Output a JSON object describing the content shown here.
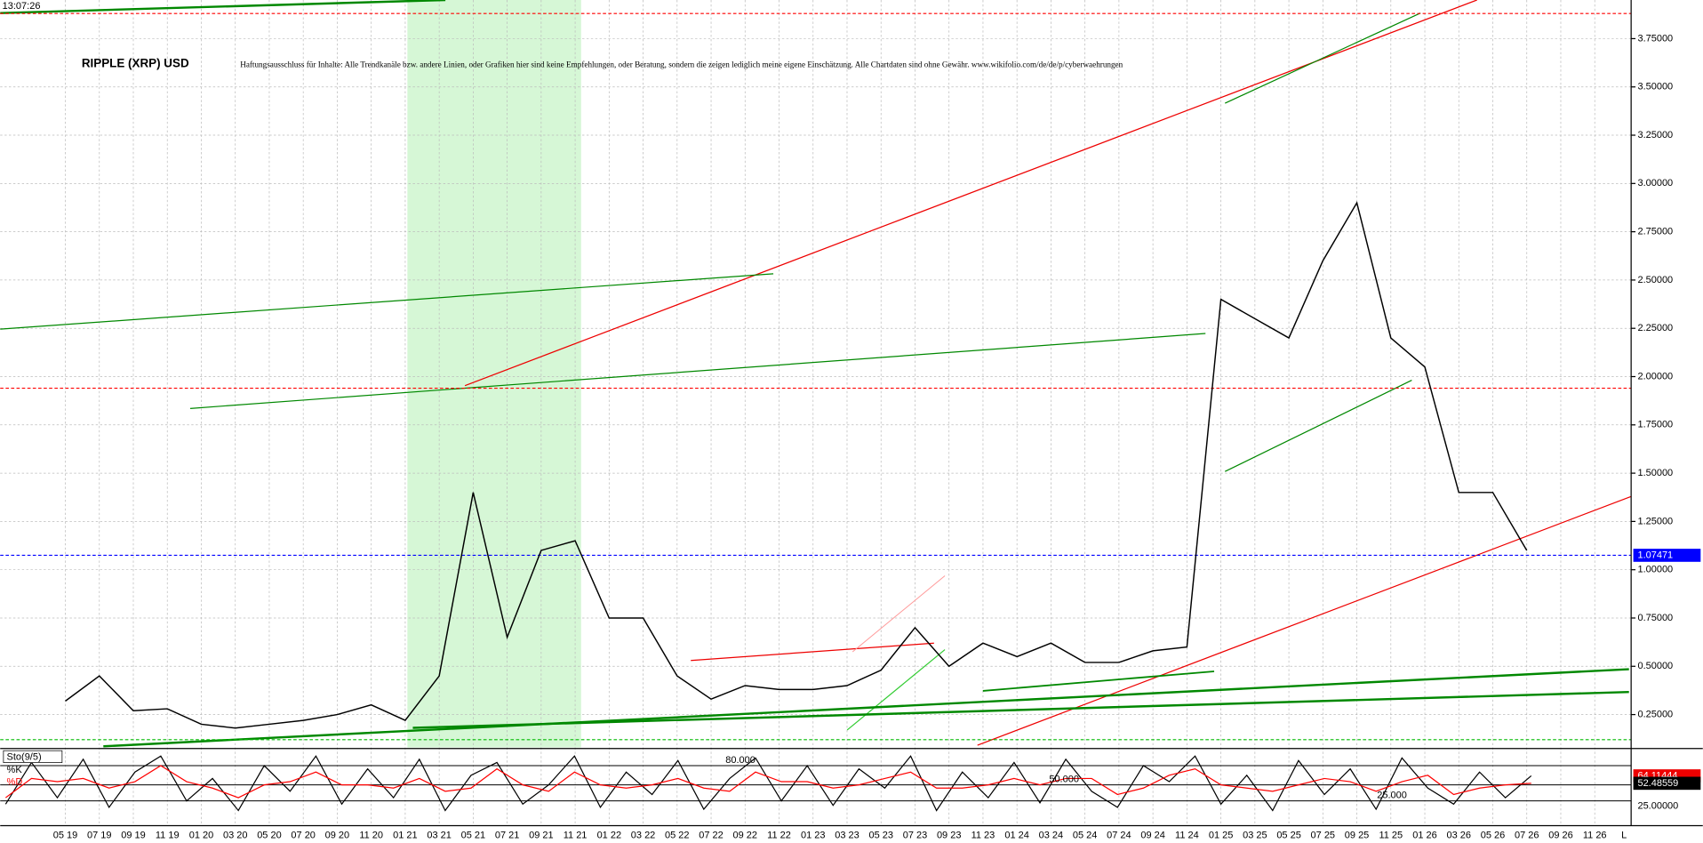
{
  "chart_data": {
    "type": "line",
    "title": "RIPPLE (XRP) USD",
    "subtitle": "Haftungsausschluss für Inhalte: Alle Trendkanäle bzw. andere Linien, oder Grafiken hier sind keine Empfehlungen, oder Beratung, sondern die zeigen lediglich meine eigene Einschätzung. Alle Chartdaten sind ohne Gewähr. www.wikifolio.com/de/de/p/cyberwaehrungen",
    "timestamp": "13:07:26",
    "categories": [
      "05 19",
      "07 19",
      "09 19",
      "11 19",
      "01 20",
      "03 20",
      "05 20",
      "07 20",
      "09 20",
      "11 20",
      "01 21",
      "03 21",
      "05 21",
      "07 21",
      "09 21",
      "11 21",
      "01 22",
      "03 22",
      "05 22",
      "07 22",
      "09 22",
      "11 22",
      "01 23",
      "03 23",
      "05 23",
      "07 23",
      "09 23",
      "11 23",
      "01 24",
      "03 24",
      "05 24",
      "07 24",
      "09 24",
      "11 24",
      "01 25",
      "03 25",
      "05 25",
      "07 25",
      "09 25",
      "11 25",
      "01 26",
      "03 26",
      "05 26",
      "07 26",
      "09 26",
      "11 26"
    ],
    "series": [
      {
        "name": "XRP",
        "color": "#000000",
        "values": [
          0.32,
          0.45,
          0.27,
          0.28,
          0.2,
          0.18,
          0.2,
          0.22,
          0.25,
          0.3,
          0.22,
          0.45,
          1.4,
          0.65,
          1.1,
          1.15,
          0.75,
          0.75,
          0.45,
          0.33,
          0.4,
          0.38,
          0.38,
          0.4,
          0.48,
          0.7,
          0.5,
          0.62,
          0.55,
          0.62,
          0.52,
          0.52,
          0.58,
          0.6,
          2.4,
          2.3,
          2.2,
          2.6,
          2.9,
          2.2,
          2.05,
          1.4,
          1.4,
          1.1,
          null,
          null
        ]
      }
    ],
    "ylim": [
      0.08,
      3.95
    ],
    "yticks": [
      {
        "value": 0.25,
        "label": "0.25000"
      },
      {
        "value": 0.5,
        "label": "0.50000"
      },
      {
        "value": 0.75,
        "label": "0.75000"
      },
      {
        "value": 1,
        "label": "1.00000"
      },
      {
        "value": 1.25,
        "label": "1.25000"
      },
      {
        "value": 1.5,
        "label": "1.50000"
      },
      {
        "value": 1.75,
        "label": "1.75000"
      },
      {
        "value": 2,
        "label": "2.00000"
      },
      {
        "value": 2.25,
        "label": "2.25000"
      },
      {
        "value": 2.5,
        "label": "2.50000"
      },
      {
        "value": 2.75,
        "label": "2.75000"
      },
      {
        "value": 3,
        "label": "3.00000"
      },
      {
        "value": 3.25,
        "label": "3.25000"
      },
      {
        "value": 3.5,
        "label": "3.50000"
      },
      {
        "value": 3.75,
        "label": "3.75000"
      }
    ],
    "hlines": [
      {
        "value": 1.07471,
        "color": "#0000ff"
      },
      {
        "value": 1.94,
        "color": "#ff0000"
      },
      {
        "value": 3.88,
        "color": "#ff0000"
      },
      {
        "value": 0.12,
        "color": "#00bb00"
      }
    ],
    "grid": true,
    "indicator": {
      "name": "Sto(9/5)",
      "ylim": [
        0,
        100
      ],
      "levels": [
        {
          "value": 80,
          "label": "80.000"
        },
        {
          "value": 50,
          "label": "50.000"
        },
        {
          "value": 25,
          "label": "25.000"
        }
      ],
      "series": [
        {
          "name": "%K",
          "color": "#000000",
          "values": [
            20,
            85,
            30,
            90,
            15,
            70,
            95,
            25,
            60,
            10,
            80,
            40,
            95,
            20,
            75,
            30,
            90,
            10,
            65,
            85,
            20,
            50,
            95,
            15,
            70,
            35,
            88,
            12,
            60,
            92,
            25,
            80,
            18,
            75,
            45,
            95,
            10,
            70,
            30,
            85,
            22,
            90,
            40,
            15,
            80,
            55,
            95,
            20,
            65,
            10,
            88,
            35,
            75,
            12,
            92,
            45,
            20,
            70,
            30,
            64.11444
          ],
          "value_label": "64.11444"
        },
        {
          "name": "%D",
          "color": "#ff0000",
          "values": [
            30,
            60,
            55,
            60,
            45,
            55,
            80,
            55,
            45,
            30,
            50,
            55,
            70,
            50,
            50,
            45,
            60,
            40,
            45,
            75,
            50,
            40,
            70,
            50,
            45,
            50,
            60,
            45,
            40,
            70,
            55,
            55,
            45,
            50,
            60,
            70,
            45,
            45,
            50,
            60,
            50,
            60,
            60,
            35,
            45,
            65,
            75,
            50,
            45,
            40,
            50,
            60,
            55,
            40,
            55,
            65,
            35,
            45,
            50,
            52.48559
          ],
          "value_label": "52.48559"
        }
      ],
      "axis_label": "25.00000"
    },
    "x_end_label": "L"
  }
}
